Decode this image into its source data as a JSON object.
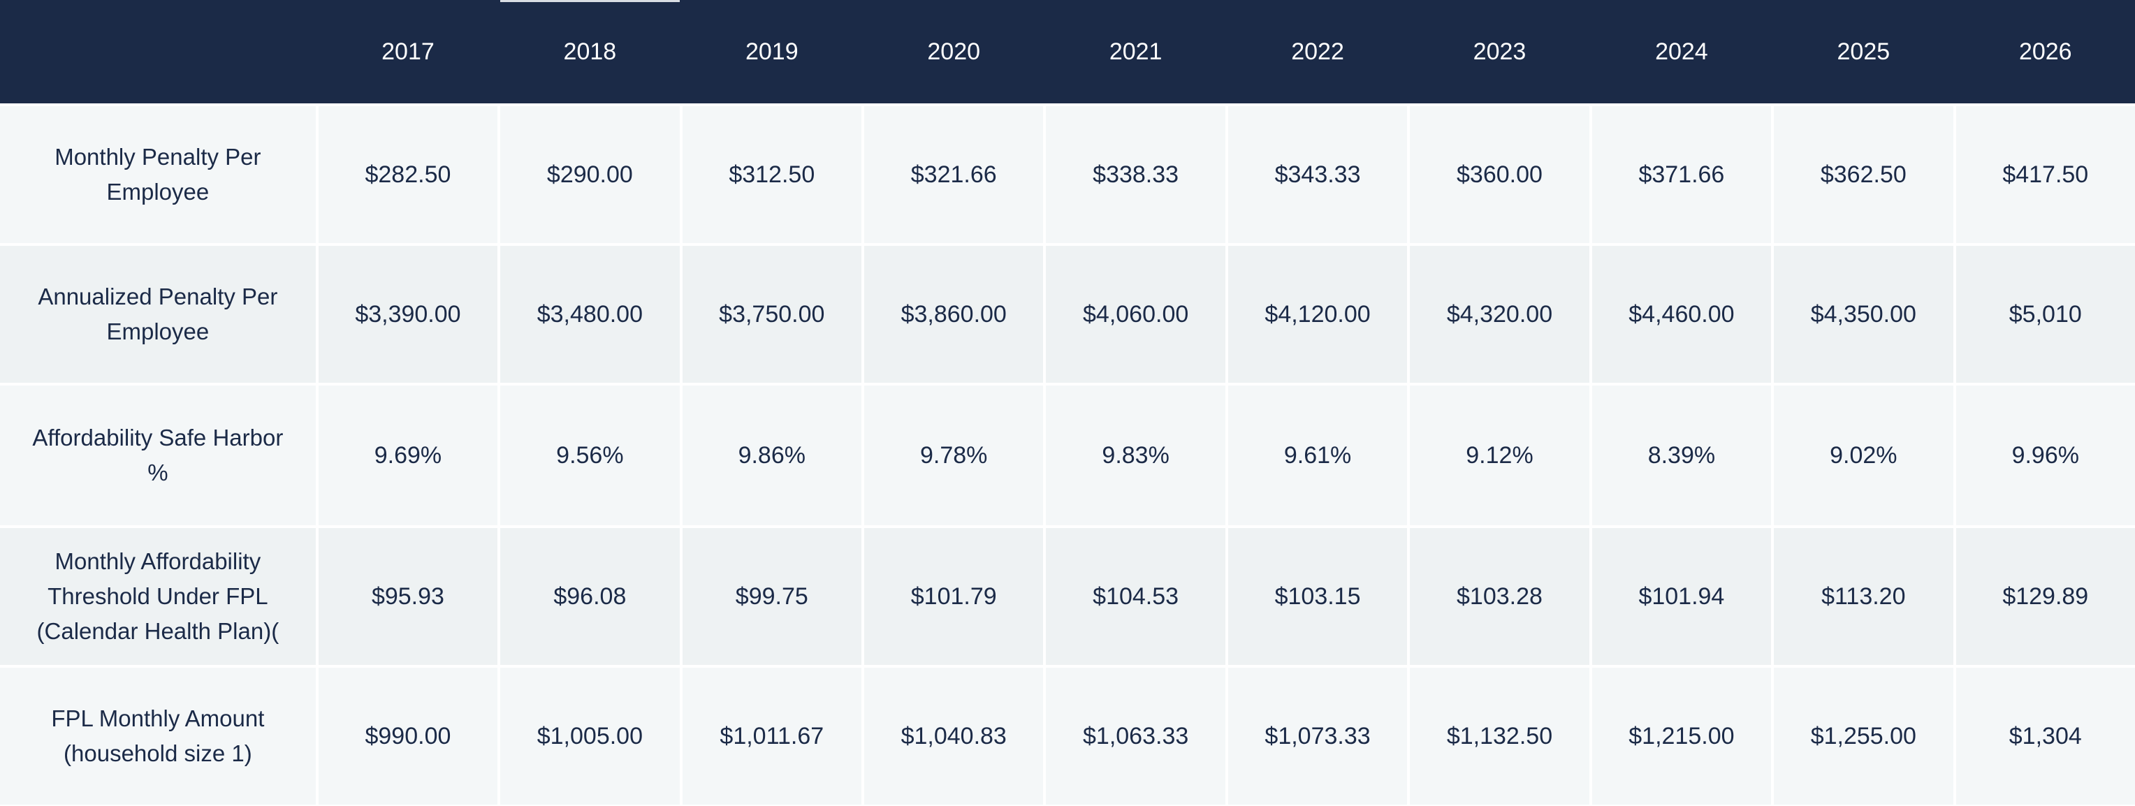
{
  "table": {
    "years": [
      "2017",
      "2018",
      "2019",
      "2020",
      "2021",
      "2022",
      "2023",
      "2024",
      "2025",
      "2026"
    ],
    "rows": [
      {
        "label": "Monthly Penalty Per Employee",
        "values": [
          "$282.50",
          "$290.00",
          "$312.50",
          "$321.66",
          "$338.33",
          "$343.33",
          "$360.00",
          "$371.66",
          "$362.50",
          "$417.50"
        ]
      },
      {
        "label": "Annualized Penalty Per Employee",
        "values": [
          "$3,390.00",
          "$3,480.00",
          "$3,750.00",
          "$3,860.00",
          "$4,060.00",
          "$4,120.00",
          "$4,320.00",
          "$4,460.00",
          "$4,350.00",
          "$5,010"
        ]
      },
      {
        "label": "Affordability Safe Harbor %",
        "values": [
          "9.69%",
          "9.56%",
          "9.86%",
          "9.78%",
          "9.83%",
          "9.61%",
          "9.12%",
          "8.39%",
          "9.02%",
          "9.96%"
        ]
      },
      {
        "label": "Monthly Affordability Threshold Under FPL (Calendar Health Plan)(",
        "values": [
          "$95.93",
          "$96.08",
          "$99.75",
          "$101.79",
          "$104.53",
          "$103.15",
          "$103.28",
          "$101.94",
          "$113.20",
          "$129.89"
        ]
      },
      {
        "label": "FPL Monthly Amount (household size 1)",
        "values": [
          "$990.00",
          "$1,005.00",
          "$1,011.67",
          "$1,040.83",
          "$1,063.33",
          "$1,073.33",
          "$1,132.50",
          "$1,215.00",
          "$1,255.00",
          "$1,304"
        ]
      }
    ]
  },
  "colors": {
    "header_bg": "#1b2a47",
    "header_text": "#ffffff",
    "row_a": "#f4f7f8",
    "row_b": "#eef2f3",
    "body_text": "#1b2a47"
  }
}
